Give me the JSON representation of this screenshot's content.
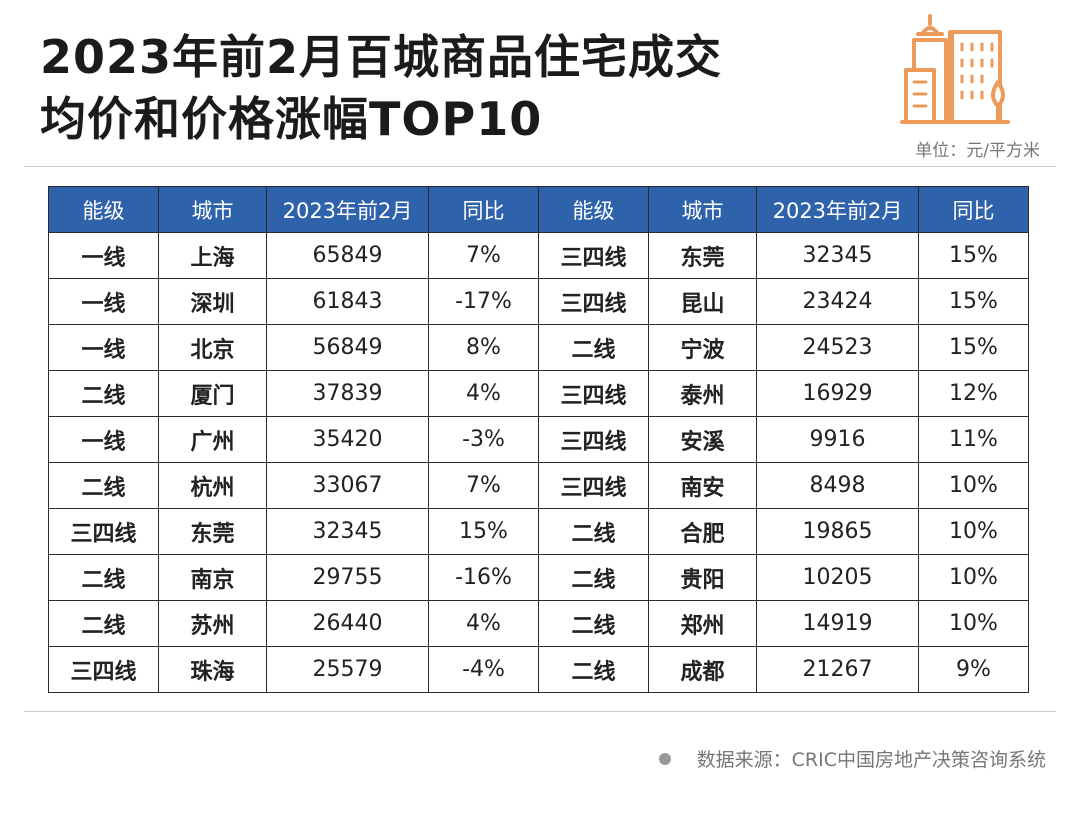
{
  "header": {
    "title_line1": "2023年前2月百城商品住宅成交",
    "title_line2": "均价和价格涨幅TOP10",
    "unit": "单位：元/平方米"
  },
  "colors": {
    "header_bg": "#2e62aa",
    "logo": "#ee9a5a"
  },
  "icons": {
    "logo": "buildings-icon"
  },
  "source": "数据来源：CRIC中国房地产决策咨询系统",
  "chart_data": {
    "type": "table",
    "columns": [
      "能级",
      "城市",
      "2023年前2月",
      "同比",
      "能级",
      "城市",
      "2023年前2月",
      "同比"
    ],
    "left_table": [
      {
        "tier": "一线",
        "city": "上海",
        "price": "65849",
        "yoy": "7%"
      },
      {
        "tier": "一线",
        "city": "深圳",
        "price": "61843",
        "yoy": "-17%"
      },
      {
        "tier": "一线",
        "city": "北京",
        "price": "56849",
        "yoy": "8%"
      },
      {
        "tier": "二线",
        "city": "厦门",
        "price": "37839",
        "yoy": "4%"
      },
      {
        "tier": "一线",
        "city": "广州",
        "price": "35420",
        "yoy": "-3%"
      },
      {
        "tier": "二线",
        "city": "杭州",
        "price": "33067",
        "yoy": "7%"
      },
      {
        "tier": "三四线",
        "city": "东莞",
        "price": "32345",
        "yoy": "15%"
      },
      {
        "tier": "二线",
        "city": "南京",
        "price": "29755",
        "yoy": "-16%"
      },
      {
        "tier": "二线",
        "city": "苏州",
        "price": "26440",
        "yoy": "4%"
      },
      {
        "tier": "三四线",
        "city": "珠海",
        "price": "25579",
        "yoy": "-4%"
      }
    ],
    "right_table": [
      {
        "tier": "三四线",
        "city": "东莞",
        "price": "32345",
        "yoy": "15%"
      },
      {
        "tier": "三四线",
        "city": "昆山",
        "price": "23424",
        "yoy": "15%"
      },
      {
        "tier": "二线",
        "city": "宁波",
        "price": "24523",
        "yoy": "15%"
      },
      {
        "tier": "三四线",
        "city": "泰州",
        "price": "16929",
        "yoy": "12%"
      },
      {
        "tier": "三四线",
        "city": "安溪",
        "price": "9916",
        "yoy": "11%"
      },
      {
        "tier": "三四线",
        "city": "南安",
        "price": "8498",
        "yoy": "10%"
      },
      {
        "tier": "二线",
        "city": "合肥",
        "price": "19865",
        "yoy": "10%"
      },
      {
        "tier": "二线",
        "city": "贵阳",
        "price": "10205",
        "yoy": "10%"
      },
      {
        "tier": "二线",
        "city": "郑州",
        "price": "14919",
        "yoy": "10%"
      },
      {
        "tier": "二线",
        "city": "成都",
        "price": "21267",
        "yoy": "9%"
      }
    ]
  }
}
